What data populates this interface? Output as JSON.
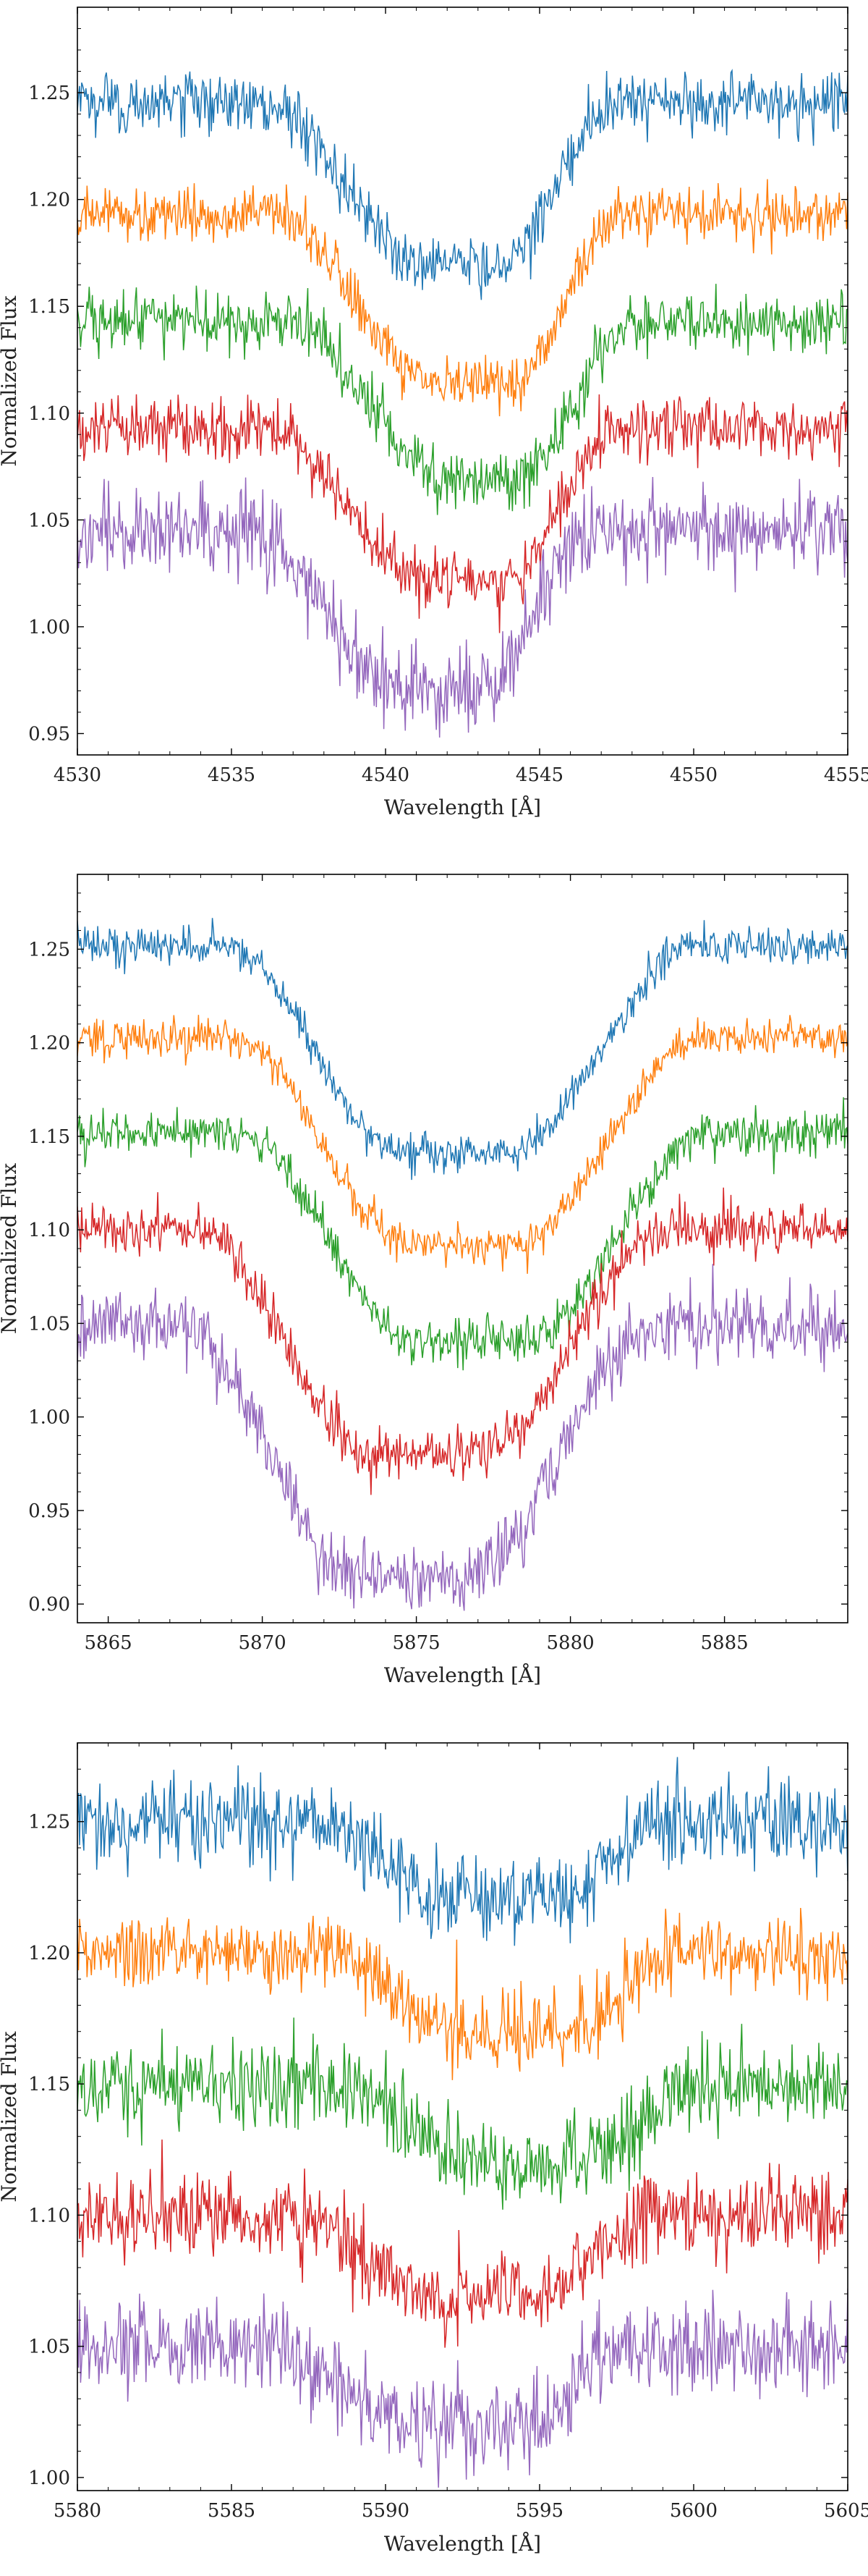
{
  "chart_data": [
    {
      "type": "line",
      "xlabel": "Wavelength [Å]",
      "ylabel": "Normalized Flux",
      "xlim": [
        4530,
        4555
      ],
      "ylim": [
        0.94,
        1.29
      ],
      "x_ticks": [
        4530,
        4535,
        4540,
        4545,
        4550,
        4555
      ],
      "y_ticks": [
        0.95,
        1.0,
        1.05,
        1.1,
        1.15,
        1.2,
        1.25
      ],
      "x_tick_labels": [
        "4530",
        "4535",
        "4540",
        "4545",
        "4550",
        "4555"
      ],
      "y_tick_labels": [
        "0.95",
        "1.00",
        "1.05",
        "1.10",
        "1.15",
        "1.20",
        "1.25"
      ],
      "grid": false,
      "line_profile": {
        "center": 4542.5,
        "core_width": 2.2,
        "wing_start": 4536.0,
        "wing_end": 4547.5
      },
      "series": [
        {
          "color": "#1f77b4",
          "continuum": 1.245,
          "depth": 0.075,
          "noise": 0.007,
          "center": 4542.5
        },
        {
          "color": "#ff7f0e",
          "continuum": 1.193,
          "depth": 0.08,
          "noise": 0.006,
          "center": 4542.8
        },
        {
          "color": "#2ca02c",
          "continuum": 1.143,
          "depth": 0.072,
          "noise": 0.007,
          "center": 4543.2
        },
        {
          "color": "#d62728",
          "continuum": 1.093,
          "depth": 0.072,
          "noise": 0.007,
          "center": 4542.6
        },
        {
          "color": "#9467bd",
          "continuum": 1.045,
          "depth": 0.075,
          "noise": 0.01,
          "center": 4541.8
        }
      ]
    },
    {
      "type": "line",
      "xlabel": "Wavelength [Å]",
      "ylabel": "Normalized Flux",
      "xlim": [
        5864,
        5889
      ],
      "ylim": [
        0.89,
        1.29
      ],
      "x_ticks": [
        5865,
        5870,
        5875,
        5880,
        5885
      ],
      "y_ticks": [
        0.9,
        0.95,
        1.0,
        1.05,
        1.1,
        1.15,
        1.2,
        1.25
      ],
      "x_tick_labels": [
        "5865",
        "5870",
        "5875",
        "5880",
        "5885"
      ],
      "y_tick_labels": [
        "0.90",
        "0.95",
        "1.00",
        "1.05",
        "1.10",
        "1.15",
        "1.20",
        "1.25"
      ],
      "grid": false,
      "line_profile": {
        "center": 5876.0,
        "core_width": 3.2,
        "wing_start": 5868.5,
        "wing_end": 5884.0
      },
      "series": [
        {
          "color": "#1f77b4",
          "continuum": 1.252,
          "depth": 0.11,
          "noise": 0.005,
          "center": 5876.2
        },
        {
          "color": "#ff7f0e",
          "continuum": 1.203,
          "depth": 0.11,
          "noise": 0.005,
          "center": 5876.4
        },
        {
          "color": "#2ca02c",
          "continuum": 1.152,
          "depth": 0.112,
          "noise": 0.006,
          "center": 5876.7
        },
        {
          "color": "#d62728",
          "continuum": 1.1,
          "depth": 0.12,
          "noise": 0.007,
          "center": 5875.3
        },
        {
          "color": "#9467bd",
          "continuum": 1.048,
          "depth": 0.135,
          "noise": 0.009,
          "center": 5874.8
        }
      ]
    },
    {
      "type": "line",
      "xlabel": "Wavelength [Å]",
      "ylabel": "Normalized Flux",
      "xlim": [
        5580,
        5605
      ],
      "ylim": [
        0.995,
        1.28
      ],
      "x_ticks": [
        5580,
        5585,
        5590,
        5595,
        5600,
        5605
      ],
      "y_ticks": [
        1.0,
        1.05,
        1.1,
        1.15,
        1.2,
        1.25
      ],
      "x_tick_labels": [
        "5580",
        "5585",
        "5590",
        "5595",
        "5600",
        "5605"
      ],
      "y_tick_labels": [
        "1.00",
        "1.05",
        "1.10",
        "1.15",
        "1.20",
        "1.25"
      ],
      "grid": false,
      "line_profile": {
        "center": 5593.5,
        "core_width": 3.0,
        "wing_start": 5587.0,
        "wing_end": 5599.0
      },
      "series": [
        {
          "color": "#1f77b4",
          "continuum": 1.25,
          "depth": 0.03,
          "noise": 0.008,
          "center": 5593.8
        },
        {
          "color": "#ff7f0e",
          "continuum": 1.2,
          "depth": 0.03,
          "noise": 0.007,
          "center": 5594.2,
          "spike_x": 5592.3,
          "spike_y": 1.205
        },
        {
          "color": "#2ca02c",
          "continuum": 1.15,
          "depth": 0.03,
          "noise": 0.008,
          "center": 5594.6
        },
        {
          "color": "#d62728",
          "continuum": 1.1,
          "depth": 0.03,
          "noise": 0.008,
          "center": 5593.3
        },
        {
          "color": "#9467bd",
          "continuum": 1.05,
          "depth": 0.03,
          "noise": 0.009,
          "center": 5592.6
        }
      ]
    }
  ]
}
